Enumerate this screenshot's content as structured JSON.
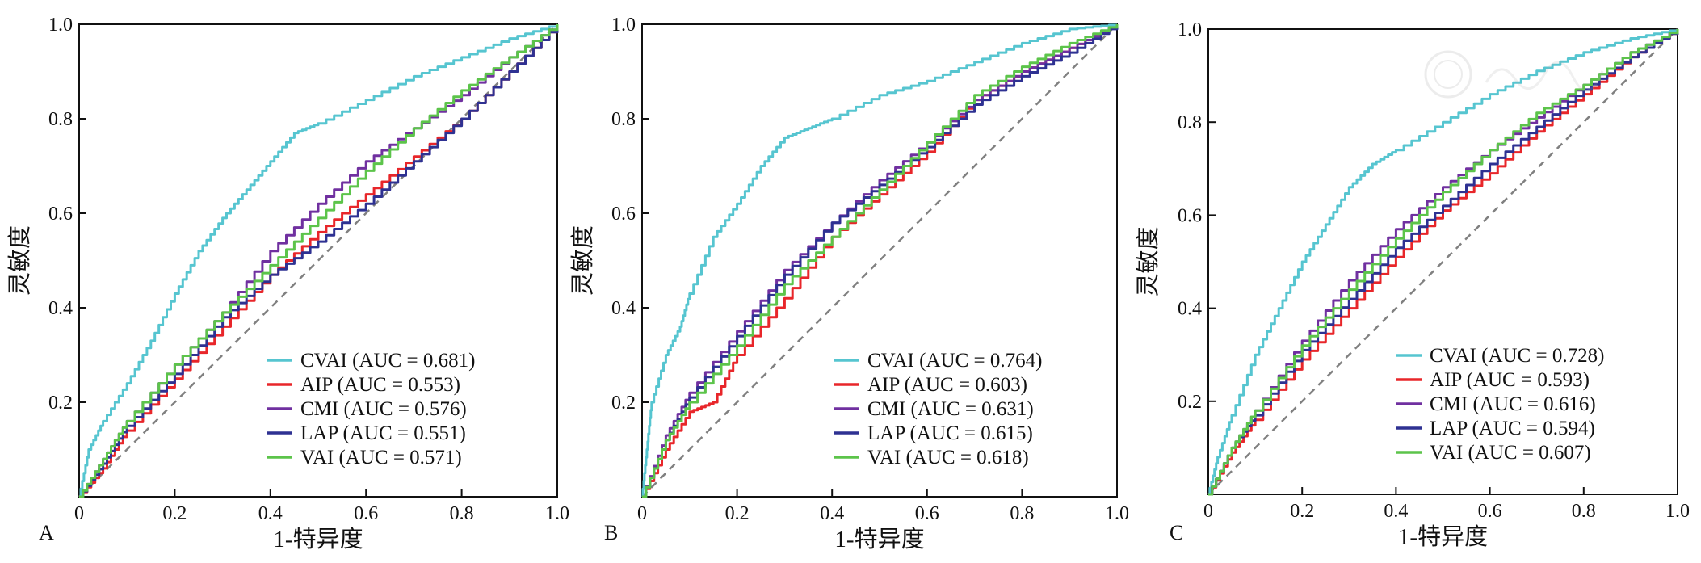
{
  "figure": {
    "panels": [
      {
        "letter": "A",
        "xlabel": "1-特异度",
        "ylabel": "灵敏度"
      },
      {
        "letter": "B",
        "xlabel": "1-特异度",
        "ylabel": "灵敏度"
      },
      {
        "letter": "C",
        "xlabel": "1-特异度",
        "ylabel": "灵敏度"
      }
    ],
    "colors": {
      "CVAI": "#56c5d0",
      "AIP": "#e8262a",
      "CMI": "#7030a0",
      "LAP": "#2e3192",
      "VAI": "#5cc44a",
      "reference": "#808080"
    }
  },
  "chart_data": [
    {
      "type": "line",
      "panel": "A",
      "xlabel": "1-特异度",
      "ylabel": "灵敏度",
      "xlim": [
        0,
        1
      ],
      "ylim": [
        0,
        1
      ],
      "x_ticks": [
        "0",
        "0.2",
        "0.4",
        "0.6",
        "0.8",
        "1.0"
      ],
      "y_ticks": [
        "0.2",
        "0.4",
        "0.6",
        "0.8",
        "1.0"
      ],
      "grid": false,
      "legend_position": "bottom-right",
      "reference_line": "diagonal-dashed",
      "series": [
        {
          "name": "CVAI",
          "legend": "CVAI (AUC = 0.681)",
          "auc": 0.681,
          "x": [
            0,
            0.02,
            0.05,
            0.1,
            0.15,
            0.2,
            0.25,
            0.3,
            0.35,
            0.4,
            0.45,
            0.5,
            0.6,
            0.7,
            0.8,
            0.9,
            1.0
          ],
          "y": [
            0,
            0.1,
            0.16,
            0.24,
            0.33,
            0.43,
            0.52,
            0.59,
            0.65,
            0.71,
            0.77,
            0.79,
            0.84,
            0.89,
            0.93,
            0.97,
            1.0
          ]
        },
        {
          "name": "AIP",
          "legend": "AIP (AUC = 0.553)",
          "auc": 0.553,
          "x": [
            0,
            0.05,
            0.1,
            0.2,
            0.3,
            0.4,
            0.5,
            0.6,
            0.7,
            0.8,
            0.9,
            1.0
          ],
          "y": [
            0,
            0.06,
            0.14,
            0.25,
            0.36,
            0.47,
            0.56,
            0.64,
            0.72,
            0.8,
            0.9,
            1.0
          ]
        },
        {
          "name": "CMI",
          "legend": "CMI (AUC = 0.576)",
          "auc": 0.576,
          "x": [
            0,
            0.05,
            0.1,
            0.2,
            0.3,
            0.4,
            0.5,
            0.6,
            0.7,
            0.8,
            0.9,
            1.0
          ],
          "y": [
            0,
            0.08,
            0.16,
            0.28,
            0.39,
            0.52,
            0.62,
            0.71,
            0.78,
            0.85,
            0.93,
            1.0
          ]
        },
        {
          "name": "LAP",
          "legend": "LAP (AUC = 0.551)",
          "auc": 0.551,
          "x": [
            0,
            0.05,
            0.1,
            0.2,
            0.3,
            0.4,
            0.5,
            0.6,
            0.7,
            0.8,
            0.9,
            1.0
          ],
          "y": [
            0,
            0.07,
            0.15,
            0.26,
            0.38,
            0.47,
            0.54,
            0.62,
            0.71,
            0.8,
            0.9,
            1.0
          ]
        },
        {
          "name": "VAI",
          "legend": "VAI (AUC = 0.571)",
          "auc": 0.571,
          "x": [
            0,
            0.05,
            0.1,
            0.2,
            0.3,
            0.4,
            0.5,
            0.6,
            0.7,
            0.8,
            0.9,
            1.0
          ],
          "y": [
            0,
            0.08,
            0.16,
            0.28,
            0.39,
            0.49,
            0.59,
            0.69,
            0.78,
            0.86,
            0.93,
            1.0
          ]
        }
      ]
    },
    {
      "type": "line",
      "panel": "B",
      "xlabel": "1-特异度",
      "ylabel": "灵敏度",
      "xlim": [
        0,
        1
      ],
      "ylim": [
        0,
        1
      ],
      "x_ticks": [
        "0",
        "0.2",
        "0.4",
        "0.6",
        "0.8",
        "1.0"
      ],
      "y_ticks": [
        "0.2",
        "0.4",
        "0.6",
        "0.8",
        "1.0"
      ],
      "grid": false,
      "legend_position": "bottom-right",
      "reference_line": "diagonal-dashed",
      "series": [
        {
          "name": "CVAI",
          "legend": "CVAI (AUC = 0.764)",
          "auc": 0.764,
          "x": [
            0,
            0.01,
            0.02,
            0.05,
            0.08,
            0.1,
            0.15,
            0.2,
            0.25,
            0.3,
            0.35,
            0.4,
            0.5,
            0.6,
            0.7,
            0.8,
            0.9,
            1.0
          ],
          "y": [
            0,
            0.1,
            0.2,
            0.3,
            0.36,
            0.43,
            0.55,
            0.62,
            0.7,
            0.76,
            0.78,
            0.8,
            0.85,
            0.88,
            0.92,
            0.96,
            0.99,
            1.0
          ]
        },
        {
          "name": "AIP",
          "legend": "AIP (AUC = 0.603)",
          "auc": 0.603,
          "x": [
            0,
            0.05,
            0.1,
            0.15,
            0.2,
            0.3,
            0.4,
            0.5,
            0.6,
            0.7,
            0.8,
            0.9,
            1.0
          ],
          "y": [
            0,
            0.1,
            0.18,
            0.2,
            0.3,
            0.42,
            0.55,
            0.64,
            0.73,
            0.84,
            0.9,
            0.95,
            1.0
          ]
        },
        {
          "name": "CMI",
          "legend": "CMI (AUC = 0.631)",
          "auc": 0.631,
          "x": [
            0,
            0.05,
            0.1,
            0.2,
            0.3,
            0.4,
            0.5,
            0.6,
            0.7,
            0.8,
            0.9,
            1.0
          ],
          "y": [
            0,
            0.13,
            0.22,
            0.35,
            0.48,
            0.58,
            0.67,
            0.75,
            0.84,
            0.9,
            0.95,
            1.0
          ]
        },
        {
          "name": "LAP",
          "legend": "LAP (AUC = 0.615)",
          "auc": 0.615,
          "x": [
            0,
            0.05,
            0.1,
            0.2,
            0.3,
            0.4,
            0.5,
            0.6,
            0.7,
            0.8,
            0.9,
            1.0
          ],
          "y": [
            0,
            0.12,
            0.21,
            0.34,
            0.47,
            0.58,
            0.66,
            0.74,
            0.83,
            0.89,
            0.94,
            1.0
          ]
        },
        {
          "name": "VAI",
          "legend": "VAI (AUC = 0.618)",
          "auc": 0.618,
          "x": [
            0,
            0.05,
            0.1,
            0.2,
            0.3,
            0.4,
            0.5,
            0.6,
            0.7,
            0.8,
            0.9,
            1.0
          ],
          "y": [
            0,
            0.12,
            0.2,
            0.32,
            0.45,
            0.55,
            0.65,
            0.75,
            0.85,
            0.91,
            0.96,
            1.0
          ]
        }
      ]
    },
    {
      "type": "line",
      "panel": "C",
      "xlabel": "1-特异度",
      "ylabel": "灵敏度",
      "xlim": [
        0,
        1
      ],
      "ylim": [
        0,
        1
      ],
      "x_ticks": [
        "0",
        "0.2",
        "0.4",
        "0.6",
        "0.8",
        "1.0"
      ],
      "y_ticks": [
        "0.2",
        "0.4",
        "0.6",
        "0.8",
        "1.0"
      ],
      "grid": false,
      "legend_position": "bottom-right",
      "reference_line": "diagonal-dashed",
      "series": [
        {
          "name": "CVAI",
          "legend": "CVAI (AUC = 0.728)",
          "auc": 0.728,
          "x": [
            0,
            0.02,
            0.05,
            0.1,
            0.15,
            0.2,
            0.25,
            0.3,
            0.35,
            0.4,
            0.5,
            0.6,
            0.7,
            0.8,
            0.9,
            1.0
          ],
          "y": [
            0,
            0.08,
            0.17,
            0.3,
            0.4,
            0.5,
            0.58,
            0.66,
            0.71,
            0.74,
            0.8,
            0.86,
            0.91,
            0.95,
            0.98,
            1.0
          ]
        },
        {
          "name": "AIP",
          "legend": "AIP (AUC = 0.593)",
          "auc": 0.593,
          "x": [
            0,
            0.05,
            0.1,
            0.2,
            0.3,
            0.4,
            0.5,
            0.6,
            0.7,
            0.8,
            0.9,
            1.0
          ],
          "y": [
            0,
            0.09,
            0.16,
            0.29,
            0.4,
            0.51,
            0.61,
            0.69,
            0.78,
            0.86,
            0.94,
            1.0
          ]
        },
        {
          "name": "CMI",
          "legend": "CMI (AUC = 0.616)",
          "auc": 0.616,
          "x": [
            0,
            0.05,
            0.1,
            0.2,
            0.3,
            0.4,
            0.5,
            0.6,
            0.7,
            0.8,
            0.9,
            1.0
          ],
          "y": [
            0,
            0.1,
            0.18,
            0.33,
            0.46,
            0.57,
            0.66,
            0.74,
            0.81,
            0.88,
            0.95,
            1.0
          ]
        },
        {
          "name": "LAP",
          "legend": "LAP (AUC = 0.594)",
          "auc": 0.594,
          "x": [
            0,
            0.05,
            0.1,
            0.2,
            0.3,
            0.4,
            0.5,
            0.6,
            0.7,
            0.8,
            0.9,
            1.0
          ],
          "y": [
            0,
            0.1,
            0.17,
            0.31,
            0.42,
            0.53,
            0.62,
            0.71,
            0.79,
            0.87,
            0.94,
            1.0
          ]
        },
        {
          "name": "VAI",
          "legend": "VAI (AUC = 0.607)",
          "auc": 0.607,
          "x": [
            0,
            0.05,
            0.1,
            0.2,
            0.3,
            0.4,
            0.5,
            0.6,
            0.7,
            0.8,
            0.9,
            1.0
          ],
          "y": [
            0,
            0.1,
            0.18,
            0.32,
            0.44,
            0.55,
            0.65,
            0.74,
            0.82,
            0.88,
            0.95,
            1.0
          ]
        }
      ]
    }
  ]
}
